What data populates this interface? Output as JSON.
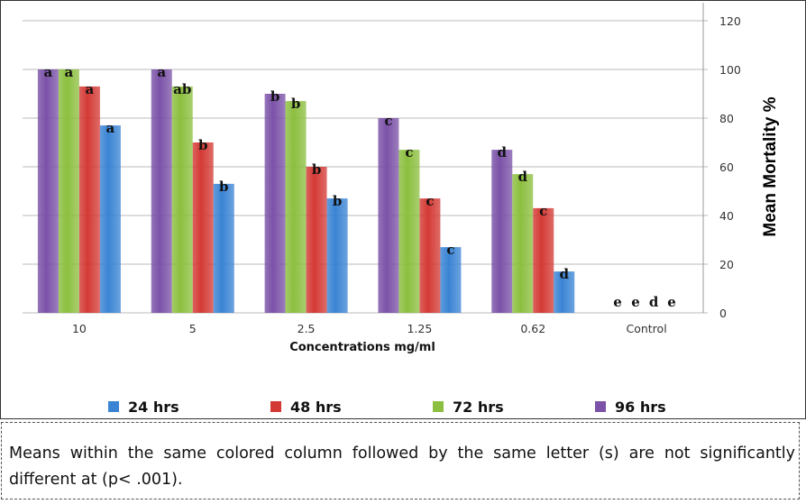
{
  "chart_data": {
    "type": "bar",
    "title": "",
    "xlabel": "Concentrations mg/ml",
    "ylabel": "Mean Mortality %",
    "ylim": [
      0,
      120
    ],
    "yticks": [
      0,
      20,
      40,
      60,
      80,
      100,
      120
    ],
    "y_axis_side": "right",
    "grid": true,
    "legend_placement": "bottom",
    "categories": [
      "10",
      "5",
      "2.5",
      "1.25",
      "0.62",
      "Control"
    ],
    "series": [
      {
        "name": "96 hrs",
        "color": "#7b52a8",
        "values": [
          100,
          100,
          90,
          80,
          67,
          0
        ],
        "letters": [
          "a",
          "a",
          "b",
          "c",
          "d",
          "e"
        ]
      },
      {
        "name": "72 hrs",
        "color": "#8cbf3f",
        "values": [
          100,
          93,
          87,
          67,
          57,
          0
        ],
        "letters": [
          "a",
          "ab",
          "b",
          "c",
          "d",
          "e"
        ]
      },
      {
        "name": "48 hrs",
        "color": "#d43a35",
        "values": [
          93,
          70,
          60,
          47,
          43,
          0
        ],
        "letters": [
          "a",
          "b",
          "b",
          "c",
          "c",
          "d"
        ]
      },
      {
        "name": "24 hrs",
        "color": "#3a84d4",
        "values": [
          77,
          53,
          47,
          27,
          17,
          0
        ],
        "letters": [
          "a",
          "b",
          "b",
          "c",
          "d",
          "e"
        ]
      }
    ],
    "legend_order": [
      "24 hrs",
      "48 hrs",
      "72 hrs",
      "96 hrs"
    ]
  },
  "note": "Means within the same colored column followed by the same letter (s) are not significantly different at (p< .001)."
}
